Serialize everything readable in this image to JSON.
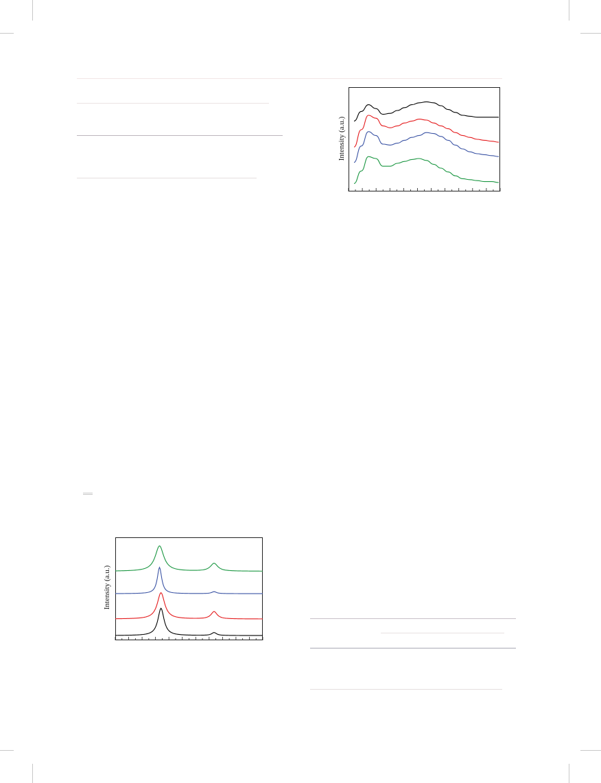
{
  "chart_data": [
    {
      "type": "line",
      "ylabel": "Intensity (a.u.)",
      "xlabel": "",
      "x_range": [
        0,
        10
      ],
      "y_range": [
        0,
        10
      ],
      "x": [
        0,
        0.5,
        1,
        1.5,
        2,
        2.5,
        3,
        3.5,
        4,
        4.5,
        5,
        5.5,
        6,
        6.5,
        7,
        7.5,
        8,
        8.5,
        9,
        9.5,
        10
      ],
      "series": [
        {
          "color": "#000000",
          "values": [
            6.9,
            7.9,
            8.6,
            8.2,
            7.6,
            7.7,
            8.0,
            8.3,
            8.6,
            8.8,
            8.9,
            8.8,
            8.5,
            8.1,
            7.8,
            7.5,
            7.4,
            7.3,
            7.3,
            7.3,
            7.3
          ]
        },
        {
          "color": "#e41a1c",
          "values": [
            4.2,
            6.0,
            7.5,
            7.2,
            6.4,
            6.2,
            6.4,
            6.7,
            6.9,
            7.1,
            7.0,
            6.7,
            6.4,
            6.1,
            5.7,
            5.4,
            5.2,
            5.0,
            4.9,
            4.8,
            4.7
          ]
        },
        {
          "color": "#3a53a4",
          "values": [
            2.6,
            4.3,
            5.8,
            5.4,
            4.5,
            4.4,
            4.6,
            4.9,
            5.2,
            5.4,
            5.7,
            5.6,
            5.3,
            4.9,
            4.4,
            4.0,
            3.7,
            3.5,
            3.4,
            3.3,
            3.2
          ]
        },
        {
          "color": "#1a9641",
          "values": [
            0.4,
            1.7,
            3.2,
            3.0,
            2.2,
            2.2,
            2.5,
            2.7,
            2.9,
            3.0,
            2.8,
            2.4,
            2.0,
            1.6,
            1.2,
            0.9,
            0.8,
            0.7,
            0.6,
            0.6,
            0.5
          ]
        }
      ]
    },
    {
      "type": "line",
      "ylabel": "Intensity (a.u.)",
      "xlabel": "",
      "x_range": [
        0,
        10
      ],
      "y_range": [
        0,
        10
      ],
      "peaks": [
        {
          "color": "#1a9641",
          "base": 6.8,
          "p1": 3.0,
          "w1": 0.35,
          "h1": 2.6,
          "p2": 6.7,
          "w2": 0.3,
          "h2": 0.8
        },
        {
          "color": "#3a53a4",
          "base": 4.5,
          "p1": 3.0,
          "w1": 0.18,
          "h1": 2.7,
          "p2": 6.7,
          "w2": 0.2,
          "h2": 0.2
        },
        {
          "color": "#e41a1c",
          "base": 1.9,
          "p1": 3.1,
          "w1": 0.3,
          "h1": 2.7,
          "p2": 6.7,
          "w2": 0.25,
          "h2": 0.75
        },
        {
          "color": "#000000",
          "base": 0.2,
          "p1": 3.1,
          "w1": 0.25,
          "h1": 2.8,
          "p2": 6.7,
          "w2": 0.2,
          "h2": 0.3
        }
      ]
    }
  ]
}
